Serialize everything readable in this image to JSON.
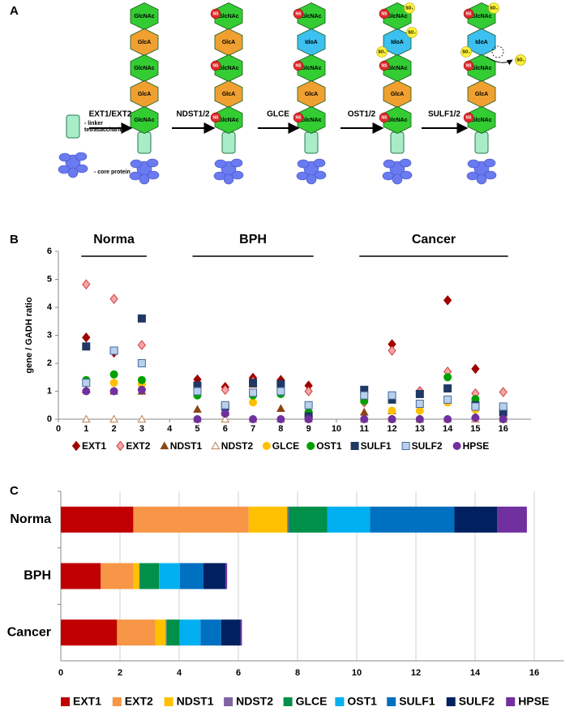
{
  "diagram": {
    "panel_labels": [
      "A",
      "B",
      "C"
    ],
    "steps": [
      "EXT1/EXT2",
      "NDST1/2",
      "GLCE",
      "OST1/2",
      "SULF1/2"
    ],
    "linker_label": [
      "- linker",
      "tetrasaccharide"
    ],
    "core_label": "- core protein",
    "ns_label": "NS",
    "so3_label": "SO₃",
    "chains": [
      [
        {
          "name": "GlcNAc",
          "color": "#33cc33"
        },
        {
          "name": "GlcA",
          "color": "#f0a030"
        },
        {
          "name": "GlcNAc",
          "color": "#33cc33"
        },
        {
          "name": "GlcA",
          "color": "#f0a030"
        },
        {
          "name": "GlcNAc",
          "color": "#33cc33"
        }
      ],
      [
        {
          "name": "GlcNAc",
          "color": "#33cc33"
        },
        {
          "name": "GlcA",
          "color": "#f0a030"
        },
        {
          "name": "GlcNAc",
          "color": "#33cc33"
        },
        {
          "name": "GlcA",
          "color": "#f0a030"
        },
        {
          "name": "GlcNAc",
          "color": "#33cc33"
        }
      ],
      [
        {
          "name": "GlcNAc",
          "color": "#33cc33"
        },
        {
          "name": "IdoA",
          "color": "#3cc0f0"
        },
        {
          "name": "GlcNAc",
          "color": "#33cc33"
        },
        {
          "name": "GlcA",
          "color": "#f0a030"
        },
        {
          "name": "GlcNAc",
          "color": "#33cc33"
        }
      ],
      [
        {
          "name": "GlcNAc",
          "color": "#33cc33"
        },
        {
          "name": "IdoA",
          "color": "#3cc0f0"
        },
        {
          "name": "GlcNAc",
          "color": "#33cc33"
        },
        {
          "name": "GlcA",
          "color": "#f0a030"
        },
        {
          "name": "GlcNAc",
          "color": "#33cc33"
        }
      ],
      [
        {
          "name": "GlcNAc",
          "color": "#33cc33"
        },
        {
          "name": "IdoA",
          "color": "#3cc0f0"
        },
        {
          "name": "GlcNAc",
          "color": "#33cc33"
        },
        {
          "name": "GlcA",
          "color": "#f0a030"
        },
        {
          "name": "GlcNAc",
          "color": "#33cc33"
        }
      ]
    ]
  },
  "chart_data": [
    {
      "type": "scatter",
      "ylabel": "gene / GADH ratio",
      "groups": [
        {
          "label": "Norma",
          "x": [
            1,
            3
          ]
        },
        {
          "label": "BPH",
          "x": [
            5,
            9
          ]
        },
        {
          "label": "Cancer",
          "x": [
            11,
            16
          ]
        }
      ],
      "x": [
        1,
        2,
        3,
        5,
        6,
        7,
        8,
        9,
        11,
        12,
        13,
        14,
        15,
        16
      ],
      "xlim": [
        0,
        17
      ],
      "xticks": [
        0,
        1,
        2,
        3,
        4,
        5,
        6,
        7,
        8,
        9,
        10,
        11,
        12,
        13,
        14,
        15,
        16
      ],
      "ylim": [
        0,
        6
      ],
      "yticks": [
        0,
        1,
        2,
        3,
        4,
        5,
        6
      ],
      "grid": false,
      "legend": "bottom",
      "series": [
        {
          "name": "EXT1",
          "marker": "diamond",
          "color": "#a00000",
          "edgecolor": "#a00000",
          "values": [
            2.92,
            2.38,
            1.05,
            1.42,
            1.15,
            1.48,
            1.4,
            1.2,
            0.75,
            2.68,
            1.0,
            4.25,
            1.8,
            0.3
          ]
        },
        {
          "name": "EXT2",
          "marker": "diamond",
          "color": "#f4a6a6",
          "edgecolor": "#d04040",
          "values": [
            4.82,
            4.3,
            2.65,
            1.0,
            1.05,
            1.35,
            1.05,
            1.0,
            0.6,
            2.45,
            1.0,
            1.7,
            0.92,
            0.97
          ]
        },
        {
          "name": "NDST1",
          "marker": "triangle",
          "color": "#8b4513",
          "edgecolor": "#8b4513",
          "values": [
            1.05,
            1.0,
            1.0,
            0.35,
            0.25,
            1.25,
            0.38,
            0.2,
            0.25,
            0.3,
            0.0,
            0.7,
            0.1,
            0.0
          ]
        },
        {
          "name": "NDST2",
          "marker": "triangle",
          "color": "#ffffff",
          "edgecolor": "#c08050",
          "values": [
            0,
            0,
            0,
            0,
            0,
            0,
            0,
            0,
            0,
            0,
            0,
            0,
            0,
            0
          ]
        },
        {
          "name": "GLCE",
          "marker": "circle",
          "color": "#ffc000",
          "edgecolor": "#ffc000",
          "values": [
            1.35,
            1.3,
            1.25,
            0.9,
            0.45,
            0.6,
            0.95,
            0.1,
            0.7,
            0.3,
            0.3,
            0.6,
            0.35,
            0.1
          ]
        },
        {
          "name": "OST1",
          "marker": "circle",
          "color": "#00a000",
          "edgecolor": "#00a000",
          "values": [
            1.4,
            1.6,
            1.4,
            0.85,
            0.2,
            0.85,
            0.9,
            0.25,
            0.65,
            0.0,
            0.0,
            1.5,
            0.72,
            0.0
          ]
        },
        {
          "name": "SULF1",
          "marker": "square",
          "color": "#1f3864",
          "edgecolor": "#1f3864",
          "values": [
            2.6,
            2.45,
            3.6,
            1.2,
            0.45,
            1.3,
            1.25,
            0.1,
            1.05,
            0.7,
            0.9,
            1.1,
            0.5,
            0.25
          ]
        },
        {
          "name": "SULF2",
          "marker": "square",
          "color": "#b8d0ea",
          "edgecolor": "#4a6aa0",
          "values": [
            1.3,
            2.45,
            2.0,
            1.0,
            0.5,
            0.95,
            1.0,
            0.5,
            0.85,
            0.85,
            0.55,
            0.7,
            0.45,
            0.45
          ]
        },
        {
          "name": "HPSE",
          "marker": "circle",
          "color": "#7030a0",
          "edgecolor": "#7030a0",
          "values": [
            1.0,
            1.0,
            1.05,
            0.0,
            0.2,
            0.0,
            0.0,
            0.0,
            0.0,
            0.0,
            0.0,
            0.0,
            0.05,
            0.0
          ]
        }
      ]
    },
    {
      "type": "stacked-barh",
      "categories": [
        "Norma",
        "BPH",
        "Cancer"
      ],
      "xlim": [
        0,
        17
      ],
      "xticks": [
        0,
        2,
        4,
        6,
        8,
        10,
        12,
        14,
        16
      ],
      "grid": true,
      "legend": "bottom",
      "series": [
        {
          "name": "EXT1",
          "color": "#c00000",
          "values": [
            2.45,
            1.35,
            1.9
          ]
        },
        {
          "name": "EXT2",
          "color": "#f79646",
          "values": [
            3.9,
            1.1,
            1.3
          ]
        },
        {
          "name": "NDST1",
          "color": "#ffc000",
          "values": [
            1.3,
            0.2,
            0.35
          ]
        },
        {
          "name": "NDST2",
          "color": "#8064a2",
          "values": [
            0.05,
            0.02,
            0.02
          ]
        },
        {
          "name": "GLCE",
          "color": "#00904a",
          "values": [
            1.3,
            0.65,
            0.45
          ]
        },
        {
          "name": "OST1",
          "color": "#00b0f0",
          "values": [
            1.45,
            0.7,
            0.7
          ]
        },
        {
          "name": "SULF1",
          "color": "#0070c0",
          "values": [
            2.85,
            0.8,
            0.7
          ]
        },
        {
          "name": "SULF2",
          "color": "#002060",
          "values": [
            1.45,
            0.75,
            0.65
          ]
        },
        {
          "name": "HPSE",
          "color": "#7030a0",
          "values": [
            1.0,
            0.05,
            0.05
          ]
        }
      ]
    }
  ]
}
